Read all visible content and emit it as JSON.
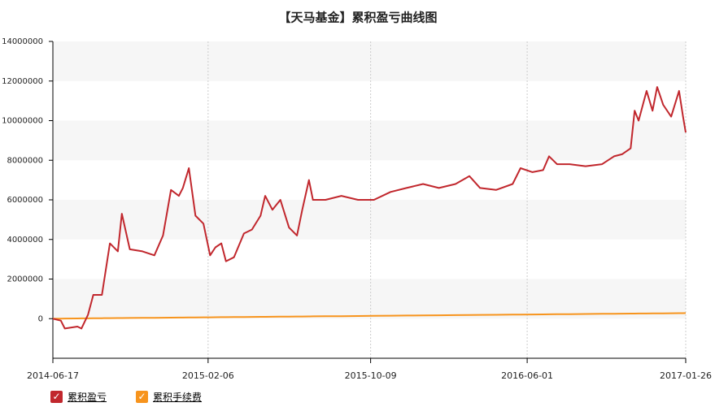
{
  "chart_data": {
    "type": "line",
    "title": "【天马基金】累积盈亏曲线图",
    "x": [
      "2014-06-17",
      "2014-06-29",
      "2014-07-05",
      "2014-07-24",
      "2014-07-30",
      "2014-08-09",
      "2014-08-17",
      "2014-08-30",
      "2014-09-11",
      "2014-09-23",
      "2014-09-29",
      "2014-10-11",
      "2014-10-30",
      "2014-11-17",
      "2014-11-30",
      "2014-12-12",
      "2014-12-24",
      "2014-12-30",
      "2015-01-08",
      "2015-01-18",
      "2015-01-30",
      "2015-02-09",
      "2015-02-17",
      "2015-02-26",
      "2015-03-05",
      "2015-03-17",
      "2015-04-01",
      "2015-04-13",
      "2015-04-26",
      "2015-05-03",
      "2015-05-14",
      "2015-05-26",
      "2015-06-08",
      "2015-06-20",
      "2015-06-28",
      "2015-07-08",
      "2015-07-14",
      "2015-08-02",
      "2015-08-26",
      "2015-09-20",
      "2015-10-14",
      "2015-11-08",
      "2015-12-02",
      "2015-12-27",
      "2016-01-20",
      "2016-02-14",
      "2016-03-06",
      "2016-03-22",
      "2016-04-15",
      "2016-05-10",
      "2016-05-22",
      "2016-06-09",
      "2016-06-25",
      "2016-07-04",
      "2016-07-16",
      "2016-08-04",
      "2016-08-28",
      "2016-09-22",
      "2016-10-10",
      "2016-10-22",
      "2016-11-04",
      "2016-11-10",
      "2016-11-16",
      "2016-11-28",
      "2016-12-07",
      "2016-12-14",
      "2016-12-23",
      "2017-01-04",
      "2017-01-16",
      "2017-01-22",
      "2017-01-26"
    ],
    "series": [
      {
        "name": "累积盈亏",
        "color": "#c1272d",
        "values": [
          0,
          -100000,
          -500000,
          -400000,
          -500000,
          200000,
          1200000,
          1200000,
          3800000,
          3400000,
          5300000,
          3500000,
          3400000,
          3200000,
          4200000,
          6500000,
          6200000,
          6600000,
          7600000,
          5200000,
          4800000,
          3200000,
          3600000,
          3800000,
          2900000,
          3100000,
          4300000,
          4500000,
          5200000,
          6200000,
          5500000,
          6000000,
          4600000,
          4200000,
          5500000,
          7000000,
          6000000,
          6000000,
          6200000,
          6000000,
          6000000,
          6400000,
          6600000,
          6800000,
          6600000,
          6800000,
          7200000,
          6600000,
          6500000,
          6800000,
          7600000,
          7400000,
          7500000,
          8200000,
          7800000,
          7800000,
          7700000,
          7800000,
          8200000,
          8300000,
          8600000,
          10500000,
          10000000,
          11500000,
          10500000,
          11700000,
          10800000,
          10200000,
          11500000,
          10200000,
          9400000
        ]
      },
      {
        "name": "累积手续费",
        "color": "#f7941d",
        "values": [
          0,
          4000,
          5000,
          11000,
          13000,
          16000,
          18000,
          22000,
          25000,
          29000,
          30000,
          34000,
          40000,
          45000,
          49000,
          52000,
          56000,
          57000,
          60000,
          63000,
          67000,
          69000,
          72000,
          74000,
          76000,
          80000,
          84000,
          88000,
          92000,
          94000,
          97000,
          100000,
          104000,
          108000,
          110000,
          113000,
          115000,
          120000,
          127000,
          135000,
          142000,
          149000,
          156000,
          163000,
          171000,
          178000,
          184000,
          189000,
          196000,
          203000,
          207000,
          212000,
          217000,
          219000,
          223000,
          228000,
          235000,
          243000,
          248000,
          251000,
          255000,
          257000,
          259000,
          262000,
          265000,
          267000,
          270000,
          273000,
          277000,
          278000,
          280000
        ]
      }
    ],
    "xlim": [
      "2014-06-17",
      "2017-01-26"
    ],
    "xticks": [
      "2014-06-17",
      "2015-02-06",
      "2015-10-09",
      "2016-06-01",
      "2017-01-26"
    ],
    "ylim": [
      -2000000,
      14000000
    ],
    "yticks": [
      0,
      2000000,
      4000000,
      6000000,
      8000000,
      10000000,
      12000000,
      14000000
    ],
    "grid": true
  }
}
